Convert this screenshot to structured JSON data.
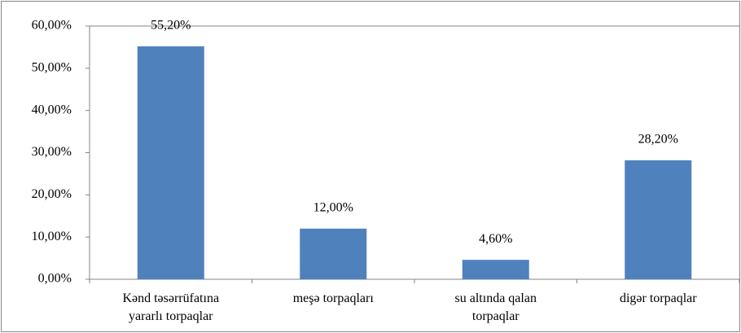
{
  "chart_data": {
    "type": "bar",
    "categories": [
      "Kənd təsərrüfatına\nyararlı torpaqlar",
      "meşə torpaqları",
      "su altında qalan\ntorpaqlar",
      "digər torpaqlar"
    ],
    "values": [
      55.2,
      12,
      4.6,
      28.2
    ],
    "value_labels": [
      "55,20%",
      "12,00%",
      "4,60%",
      "28,20%"
    ],
    "color": "#4f81bd",
    "ylim": [
      0,
      60
    ],
    "yticks": [
      {
        "value": 0,
        "label": "0,00%"
      },
      {
        "value": 10,
        "label": "10,00%"
      },
      {
        "value": 20,
        "label": "20,00%"
      },
      {
        "value": 30,
        "label": "30,00%"
      },
      {
        "value": 40,
        "label": "40,00%"
      },
      {
        "value": 50,
        "label": "50,00%"
      },
      {
        "value": 60,
        "label": "60,00%"
      }
    ],
    "grid": false
  }
}
